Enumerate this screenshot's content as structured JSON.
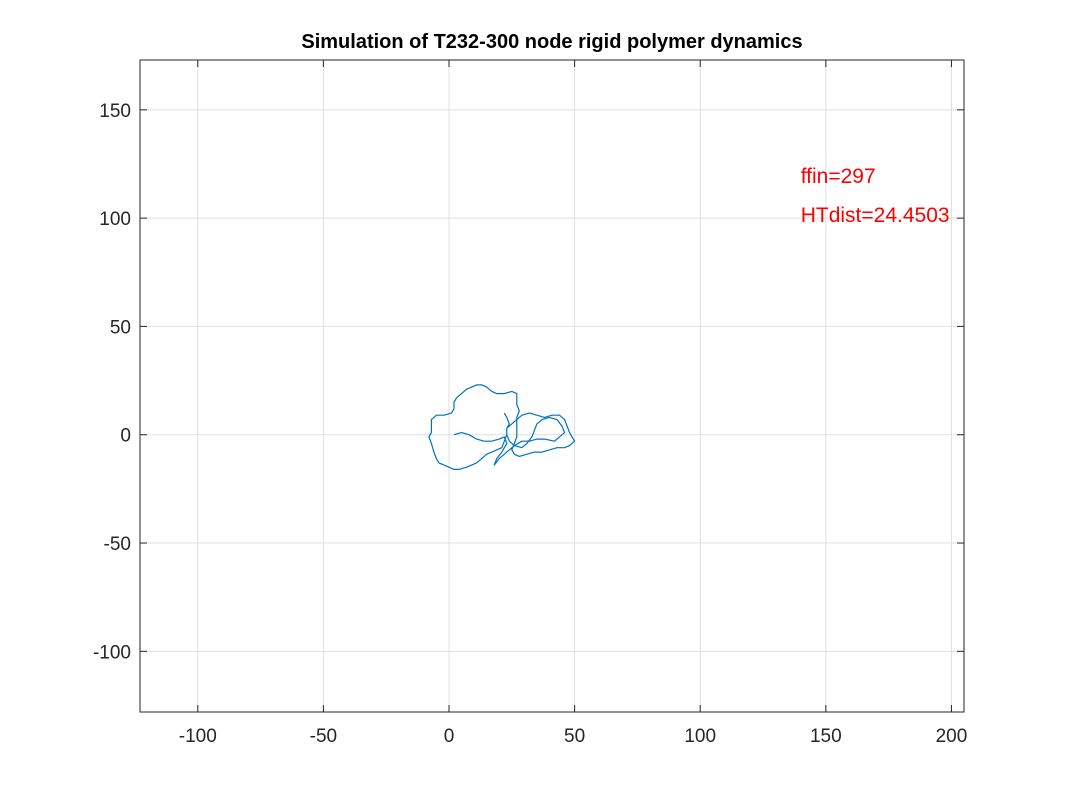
{
  "chart_data": {
    "type": "line",
    "title": "Simulation of T232-300 node rigid polymer dynamics",
    "xlabel": "",
    "ylabel": "",
    "xlim": [
      -123,
      205
    ],
    "ylim": [
      -128,
      173
    ],
    "xticks": [
      -100,
      -50,
      0,
      50,
      100,
      150,
      200
    ],
    "yticks": [
      -100,
      -50,
      0,
      50,
      100,
      150
    ],
    "grid": true,
    "box": true,
    "series": [
      {
        "color": "#0072BD",
        "points": [
          [
            2,
            0
          ],
          [
            5,
            1
          ],
          [
            8,
            0
          ],
          [
            11,
            -2
          ],
          [
            14,
            -3
          ],
          [
            17,
            -3
          ],
          [
            20,
            -2
          ],
          [
            22,
            -1
          ],
          [
            23,
            -4
          ],
          [
            21,
            -8
          ],
          [
            19,
            -11
          ],
          [
            18,
            -14
          ],
          [
            20,
            -11
          ],
          [
            23,
            -8
          ],
          [
            26,
            -5
          ],
          [
            29,
            -3
          ],
          [
            32,
            -3
          ],
          [
            35,
            -2
          ],
          [
            38,
            -2
          ],
          [
            42,
            -3
          ],
          [
            44,
            -1
          ],
          [
            46,
            1
          ],
          [
            45,
            4
          ],
          [
            43,
            7
          ],
          [
            40,
            8
          ],
          [
            37,
            7
          ],
          [
            35,
            5
          ],
          [
            34,
            2
          ],
          [
            33,
            -1
          ],
          [
            31,
            -4
          ],
          [
            29,
            -6
          ],
          [
            26,
            -5
          ],
          [
            24,
            -3
          ],
          [
            23,
            0
          ],
          [
            23,
            3
          ],
          [
            25,
            5
          ],
          [
            27,
            7
          ],
          [
            29,
            9
          ],
          [
            32,
            10
          ],
          [
            35,
            9
          ],
          [
            38,
            8
          ],
          [
            41,
            9
          ],
          [
            44,
            9
          ],
          [
            46,
            7
          ],
          [
            47,
            4
          ],
          [
            48,
            1
          ],
          [
            49,
            -1
          ],
          [
            50,
            -3
          ],
          [
            48,
            -5
          ],
          [
            46,
            -6
          ],
          [
            43,
            -6
          ],
          [
            40,
            -7
          ],
          [
            37,
            -8
          ],
          [
            34,
            -8
          ],
          [
            31,
            -9
          ],
          [
            28,
            -10
          ],
          [
            26,
            -9
          ],
          [
            25,
            -7
          ],
          [
            26,
            -4
          ],
          [
            27,
            -1
          ],
          [
            27,
            2
          ],
          [
            27,
            5
          ],
          [
            27,
            8
          ],
          [
            28,
            11
          ],
          [
            27,
            14
          ],
          [
            27,
            17
          ],
          [
            27,
            19
          ],
          [
            25,
            20
          ],
          [
            22,
            19
          ],
          [
            19,
            19
          ],
          [
            17,
            20
          ],
          [
            15,
            22
          ],
          [
            13,
            23
          ],
          [
            11,
            23
          ],
          [
            9,
            22
          ],
          [
            7,
            21
          ],
          [
            5,
            19
          ],
          [
            3,
            17
          ],
          [
            2,
            15
          ],
          [
            2,
            12
          ],
          [
            1,
            10
          ],
          [
            -2,
            9
          ],
          [
            -5,
            9
          ],
          [
            -7,
            7
          ],
          [
            -7,
            4
          ],
          [
            -7,
            1
          ],
          [
            -8,
            -1
          ],
          [
            -7,
            -4
          ],
          [
            -6,
            -8
          ],
          [
            -5,
            -11
          ],
          [
            -4,
            -13
          ],
          [
            -2,
            -14
          ],
          [
            0,
            -15
          ],
          [
            2,
            -16
          ],
          [
            4,
            -16
          ],
          [
            7,
            -15
          ],
          [
            9,
            -14
          ],
          [
            11,
            -13
          ],
          [
            13,
            -11
          ],
          [
            15,
            -9
          ],
          [
            17,
            -8
          ],
          [
            19,
            -7
          ],
          [
            21,
            -6
          ],
          [
            22,
            -3
          ],
          [
            23,
            0
          ],
          [
            23,
            3
          ],
          [
            24,
            5
          ],
          [
            23,
            8
          ],
          [
            22,
            10
          ]
        ]
      }
    ],
    "annotations": [
      {
        "text": "ffin=297",
        "x": 140,
        "y": 120,
        "color": "#FF0000"
      },
      {
        "text": "HTdist=24.4503",
        "x": 140,
        "y": 102,
        "color": "#FF0000"
      }
    ]
  }
}
